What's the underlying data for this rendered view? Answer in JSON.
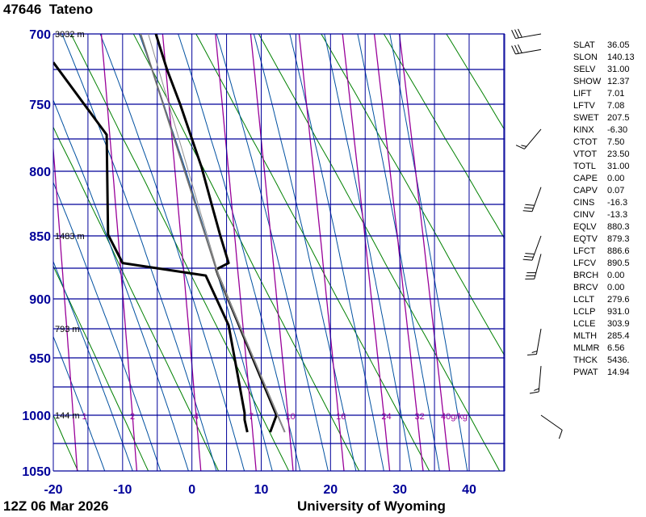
{
  "header": {
    "title": "47646  Tateno"
  },
  "footer": {
    "time": "12Z 06 Mar 2026",
    "source": "University of Wyoming"
  },
  "colors": {
    "grid": "#000099",
    "labels": "#000099",
    "dry_adiabat": "#008000",
    "moist_adiabat": "#0050a0",
    "mixing_ratio": "#990099",
    "sounding": "#000000",
    "parcel": "#707070"
  },
  "stats": [
    {
      "k": "SLAT",
      "v": "36.05"
    },
    {
      "k": "SLON",
      "v": "140.13"
    },
    {
      "k": "SELV",
      "v": "31.00"
    },
    {
      "k": "SHOW",
      "v": "12.37"
    },
    {
      "k": "LIFT",
      "v": "7.01"
    },
    {
      "k": "LFTV",
      "v": "7.08"
    },
    {
      "k": "SWET",
      "v": "207.5"
    },
    {
      "k": "KINX",
      "v": "-6.30"
    },
    {
      "k": "CTOT",
      "v": "7.50"
    },
    {
      "k": "VTOT",
      "v": "23.50"
    },
    {
      "k": "TOTL",
      "v": "31.00"
    },
    {
      "k": "CAPE",
      "v": "0.00"
    },
    {
      "k": "CAPV",
      "v": "0.07"
    },
    {
      "k": "CINS",
      "v": "-16.3"
    },
    {
      "k": "CINV",
      "v": "-13.3"
    },
    {
      "k": "EQLV",
      "v": "880.3"
    },
    {
      "k": "EQTV",
      "v": "879.3"
    },
    {
      "k": "LFCT",
      "v": "886.6"
    },
    {
      "k": "LFCV",
      "v": "890.5"
    },
    {
      "k": "BRCH",
      "v": "0.00"
    },
    {
      "k": "BRCV",
      "v": "0.00"
    },
    {
      "k": "LCLT",
      "v": "279.6"
    },
    {
      "k": "LCLP",
      "v": "931.0"
    },
    {
      "k": "LCLE",
      "v": "303.9"
    },
    {
      "k": "MLTH",
      "v": "285.4"
    },
    {
      "k": "MLMR",
      "v": "6.56"
    },
    {
      "k": "THCK",
      "v": "5436."
    },
    {
      "k": "PWAT",
      "v": "14.94"
    }
  ],
  "chart_data": {
    "type": "line",
    "xlim": [
      -20,
      45
    ],
    "ylim_pressure_hpa": [
      1050,
      700
    ],
    "y_scale": "log-pressure",
    "grid": true,
    "x_ticks": [
      "-20",
      "-10",
      "0",
      "10",
      "20",
      "30",
      "40"
    ],
    "x_tick_values": [
      -20,
      -10,
      0,
      10,
      20,
      30,
      40
    ],
    "y_ticks": [
      "700",
      "750",
      "800",
      "850",
      "900",
      "950",
      "1000",
      "1050"
    ],
    "y_tick_values": [
      700,
      750,
      800,
      850,
      900,
      950,
      1000,
      1050
    ],
    "height_labels": [
      {
        "p": 700,
        "text": "3032 m"
      },
      {
        "p": 850,
        "text": "1483 m"
      },
      {
        "p": 925,
        "text": "793 m"
      },
      {
        "p": 1000,
        "text": "144 m"
      }
    ],
    "mixing_ratio_labels": [
      "1",
      "2",
      "4",
      "7",
      "10",
      "16",
      "24",
      "32",
      "40g/kg"
    ],
    "mixing_ratio_values": [
      1,
      2,
      4,
      7,
      10,
      16,
      24,
      32,
      40
    ],
    "series": [
      {
        "color": "#000000",
        "width": 3,
        "points": [
          [
            700,
            -5.2
          ],
          [
            725,
            -3.6
          ],
          [
            750,
            -1.7
          ],
          [
            775,
            0.0
          ],
          [
            797,
            1.4
          ],
          [
            828,
            3.0
          ],
          [
            850,
            4.1
          ],
          [
            871,
            5.3
          ],
          [
            876,
            3.5
          ],
          [
            881,
            3.8
          ],
          [
            1000,
            12.2
          ],
          [
            1015,
            11.3
          ]
        ]
      },
      {
        "color": "#000000",
        "width": 3,
        "points": [
          [
            720,
            -20.0
          ],
          [
            772,
            -12.3
          ],
          [
            849,
            -12.1
          ],
          [
            871,
            -10.0
          ],
          [
            881,
            2.0
          ],
          [
            922,
            5.3
          ],
          [
            998,
            7.6
          ],
          [
            1004,
            7.6
          ],
          [
            1015,
            8.0
          ]
        ]
      },
      {
        "color": "#707070",
        "width": 2,
        "points": [
          [
            1015,
            13.4
          ],
          [
            881,
            3.8
          ],
          [
            700,
            -7.4
          ]
        ]
      },
      {
        "color": "#909090",
        "width": 1,
        "points": [
          [
            1015,
            13.4
          ],
          [
            881,
            3.9
          ],
          [
            700,
            -6.3
          ]
        ]
      }
    ],
    "wind_barbs": [
      {
        "p": 700,
        "dir": 260,
        "kt": 30
      },
      {
        "p": 711,
        "dir": 260,
        "kt": 30
      },
      {
        "p": 768,
        "dir": 220,
        "kt": 15
      },
      {
        "p": 812,
        "dir": 200,
        "kt": 30
      },
      {
        "p": 850,
        "dir": 200,
        "kt": 30
      },
      {
        "p": 864,
        "dir": 195,
        "kt": 30
      },
      {
        "p": 925,
        "dir": 190,
        "kt": 15
      },
      {
        "p": 957,
        "dir": 185,
        "kt": 15
      },
      {
        "p": 1000,
        "dir": 125,
        "kt": 10
      }
    ]
  }
}
